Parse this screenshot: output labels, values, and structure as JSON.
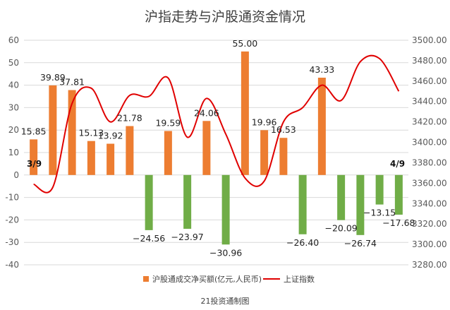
{
  "chart_data": {
    "type": "bar+line",
    "title": "沪指走势与沪股通资金情况",
    "footer": "21投资通制图",
    "start_label": "3/9",
    "end_label": "4/9",
    "legend_position": "bottom",
    "grid": true,
    "left_axis": {
      "range": [
        -40,
        60
      ],
      "ticks": [
        "60",
        "50",
        "40",
        "30",
        "20",
        "10",
        "0",
        "-10",
        "-20",
        "-30",
        "-40"
      ]
    },
    "right_axis": {
      "range": [
        3280,
        3500
      ],
      "ticks": [
        "3500.00",
        "3480.00",
        "3460.00",
        "3440.00",
        "3420.00",
        "3400.00",
        "3380.00",
        "3360.00",
        "3340.00",
        "3320.00",
        "3300.00",
        "3280.00"
      ]
    },
    "series": [
      {
        "name": "沪股通成交净买额(亿元,人民币)",
        "type": "bar",
        "axis": "left",
        "positive_color": "#ED7D31",
        "negative_color": "#70AD47",
        "values": [
          15.85,
          39.89,
          37.81,
          15.13,
          13.92,
          21.78,
          -24.56,
          19.59,
          -23.97,
          24.06,
          -30.96,
          55.0,
          19.96,
          16.53,
          -26.4,
          43.33,
          -20.09,
          -26.74,
          -13.15,
          -17.68
        ],
        "labels": [
          "15.85",
          "39.89",
          "37.81",
          "15.13",
          "13.92",
          "21.78",
          "−24.56",
          "19.59",
          "−23.97",
          "24.06",
          "−30.96",
          "55.00",
          "19.96",
          "16.53",
          "−26.40",
          "43.33",
          "−20.09",
          "−26.74",
          "−13.15",
          "−17.68"
        ]
      },
      {
        "name": "上证指数",
        "type": "line",
        "axis": "right",
        "color": "#E00000",
        "smooth": true,
        "values": [
          3359,
          3356,
          3438,
          3453,
          3420,
          3446,
          3445,
          3463,
          3405,
          3443,
          3408,
          3365,
          3362,
          3420,
          3434,
          3456,
          3441,
          3479,
          3482,
          3450
        ]
      }
    ]
  }
}
